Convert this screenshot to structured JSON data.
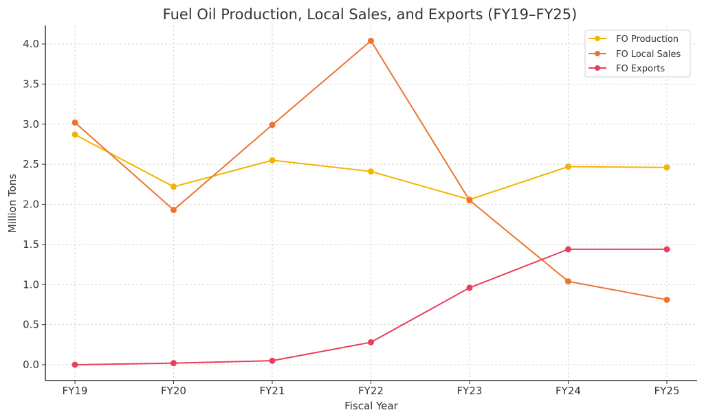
{
  "chart_data": {
    "type": "line",
    "title": "Fuel Oil Production, Local Sales, and Exports (FY19–FY25)",
    "xlabel": "Fiscal Year",
    "ylabel": "Million Tons",
    "categories": [
      "FY19",
      "FY20",
      "FY21",
      "FY22",
      "FY23",
      "FY24",
      "FY25"
    ],
    "ylim": [
      -0.2,
      4.25
    ],
    "yticks": [
      0.0,
      0.5,
      1.0,
      1.5,
      2.0,
      2.5,
      3.0,
      3.5,
      4.0
    ],
    "ytick_labels": [
      "0.0",
      "0.5",
      "1.0",
      "1.5",
      "2.0",
      "2.5",
      "3.0",
      "3.5",
      "4.0"
    ],
    "grid": true,
    "legend_position": "top-right",
    "series": [
      {
        "name": "FO Production",
        "color": "#f5b301",
        "values": [
          2.87,
          2.22,
          2.55,
          2.41,
          2.06,
          2.47,
          2.46
        ]
      },
      {
        "name": "FO Local Sales",
        "color": "#ee7330",
        "values": [
          3.02,
          1.93,
          2.99,
          4.04,
          2.05,
          1.04,
          0.81
        ]
      },
      {
        "name": "FO Exports",
        "color": "#e83e5c",
        "values": [
          0.0,
          0.02,
          0.05,
          0.28,
          0.96,
          1.44,
          1.44
        ]
      }
    ]
  }
}
